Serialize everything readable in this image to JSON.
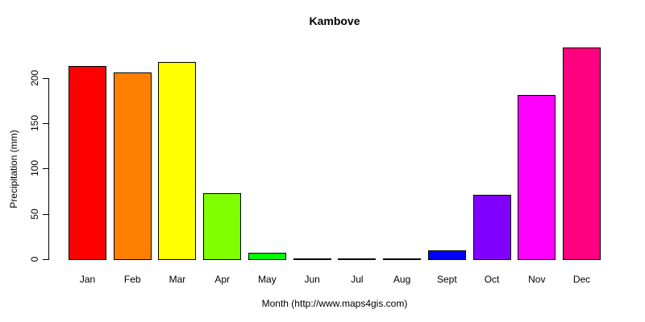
{
  "title": "Kambove",
  "chart_data": {
    "type": "bar",
    "title": "Kambove",
    "xlabel": "Month (http://www.maps4gis.com)",
    "ylabel": "Precipitation (mm)",
    "categories": [
      "Jan",
      "Feb",
      "Mar",
      "Apr",
      "May",
      "Jun",
      "Jul",
      "Aug",
      "Sept",
      "Oct",
      "Nov",
      "Dec"
    ],
    "values": [
      213,
      206,
      217,
      73,
      7,
      1,
      0.5,
      1,
      10,
      71,
      181,
      233
    ],
    "bar_colors": [
      "#FF0000",
      "#FF8000",
      "#FFFF00",
      "#80FF00",
      "#00FF00",
      "#00FF80",
      "#00FFFF",
      "#0080FF",
      "#0000FF",
      "#8000FF",
      "#FF00FF",
      "#FF0080"
    ],
    "bar_border_color": "#000000",
    "yticks": [
      0,
      50,
      100,
      150,
      200
    ],
    "ylim": [
      0,
      233
    ],
    "grid": false,
    "legend_position": "none",
    "background_color": "#FFFFFF",
    "axis_color": "#000000"
  }
}
